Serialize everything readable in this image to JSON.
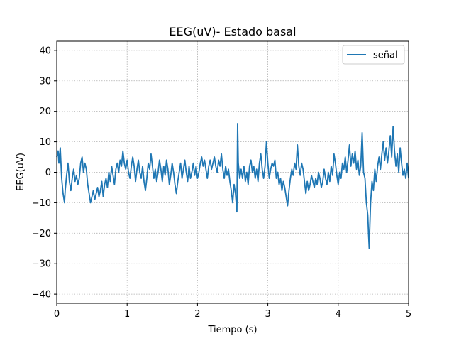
{
  "chart_data": {
    "type": "line",
    "title": "EEG(uV)- Estado basal",
    "xlabel": "Tiempo (s)",
    "ylabel": "EEG(uV)",
    "xlim": [
      0,
      5
    ],
    "ylim": [
      -43,
      43
    ],
    "x_ticks": [
      0,
      1,
      2,
      3,
      4,
      5
    ],
    "y_ticks": [
      -40,
      -30,
      -20,
      -10,
      0,
      10,
      20,
      30,
      40
    ],
    "grid": true,
    "legend_position": "top-right",
    "series": [
      {
        "name": "señal",
        "color": "#1f77b4",
        "points": [
          [
            0.0,
            5
          ],
          [
            0.02,
            7
          ],
          [
            0.03,
            3
          ],
          [
            0.05,
            8
          ],
          [
            0.07,
            -2
          ],
          [
            0.09,
            -7
          ],
          [
            0.11,
            -10
          ],
          [
            0.12,
            -6
          ],
          [
            0.14,
            -1
          ],
          [
            0.16,
            3
          ],
          [
            0.18,
            -3
          ],
          [
            0.2,
            -6
          ],
          [
            0.22,
            -2
          ],
          [
            0.24,
            1
          ],
          [
            0.26,
            -3
          ],
          [
            0.28,
            -1
          ],
          [
            0.3,
            -4
          ],
          [
            0.32,
            -2
          ],
          [
            0.34,
            3
          ],
          [
            0.36,
            5
          ],
          [
            0.38,
            0
          ],
          [
            0.4,
            3
          ],
          [
            0.42,
            1
          ],
          [
            0.44,
            -4
          ],
          [
            0.46,
            -7
          ],
          [
            0.48,
            -10
          ],
          [
            0.5,
            -8
          ],
          [
            0.52,
            -6
          ],
          [
            0.54,
            -9
          ],
          [
            0.56,
            -7
          ],
          [
            0.58,
            -5
          ],
          [
            0.6,
            -8
          ],
          [
            0.62,
            -6
          ],
          [
            0.64,
            -3
          ],
          [
            0.66,
            -8
          ],
          [
            0.68,
            -4
          ],
          [
            0.7,
            -2
          ],
          [
            0.72,
            -5
          ],
          [
            0.74,
            0
          ],
          [
            0.76,
            -3
          ],
          [
            0.78,
            2
          ],
          [
            0.8,
            -1
          ],
          [
            0.82,
            -4
          ],
          [
            0.84,
            1
          ],
          [
            0.86,
            3
          ],
          [
            0.88,
            0
          ],
          [
            0.9,
            4
          ],
          [
            0.92,
            2
          ],
          [
            0.94,
            7
          ],
          [
            0.96,
            3
          ],
          [
            0.98,
            1
          ],
          [
            1.0,
            4
          ],
          [
            1.02,
            0
          ],
          [
            1.04,
            -2
          ],
          [
            1.06,
            2
          ],
          [
            1.08,
            5
          ],
          [
            1.1,
            2
          ],
          [
            1.12,
            -3
          ],
          [
            1.14,
            1
          ],
          [
            1.16,
            4
          ],
          [
            1.18,
            0
          ],
          [
            1.2,
            -2
          ],
          [
            1.22,
            2
          ],
          [
            1.24,
            -3
          ],
          [
            1.26,
            -6
          ],
          [
            1.28,
            -2
          ],
          [
            1.3,
            3
          ],
          [
            1.32,
            1
          ],
          [
            1.34,
            6
          ],
          [
            1.36,
            2
          ],
          [
            1.38,
            -2
          ],
          [
            1.4,
            1
          ],
          [
            1.42,
            -3
          ],
          [
            1.44,
            0
          ],
          [
            1.46,
            4
          ],
          [
            1.48,
            1
          ],
          [
            1.5,
            -3
          ],
          [
            1.52,
            2
          ],
          [
            1.54,
            -1
          ],
          [
            1.56,
            4
          ],
          [
            1.58,
            1
          ],
          [
            1.6,
            -4
          ],
          [
            1.62,
            -1
          ],
          [
            1.64,
            3
          ],
          [
            1.66,
            0
          ],
          [
            1.68,
            -4
          ],
          [
            1.7,
            -7
          ],
          [
            1.72,
            -3
          ],
          [
            1.74,
            0
          ],
          [
            1.76,
            3
          ],
          [
            1.78,
            -2
          ],
          [
            1.8,
            1
          ],
          [
            1.82,
            4
          ],
          [
            1.84,
            0
          ],
          [
            1.86,
            -3
          ],
          [
            1.88,
            2
          ],
          [
            1.9,
            -2
          ],
          [
            1.92,
            0
          ],
          [
            1.94,
            3
          ],
          [
            1.96,
            -1
          ],
          [
            1.98,
            2
          ],
          [
            2.0,
            -2
          ],
          [
            2.02,
            0
          ],
          [
            2.04,
            3
          ],
          [
            2.06,
            5
          ],
          [
            2.08,
            2
          ],
          [
            2.1,
            4
          ],
          [
            2.12,
            1
          ],
          [
            2.14,
            -2
          ],
          [
            2.16,
            2
          ],
          [
            2.18,
            4
          ],
          [
            2.2,
            1
          ],
          [
            2.22,
            3
          ],
          [
            2.24,
            5
          ],
          [
            2.26,
            2
          ],
          [
            2.28,
            0
          ],
          [
            2.3,
            4
          ],
          [
            2.32,
            2
          ],
          [
            2.34,
            6
          ],
          [
            2.36,
            1
          ],
          [
            2.38,
            -2
          ],
          [
            2.4,
            2
          ],
          [
            2.42,
            -1
          ],
          [
            2.44,
            1
          ],
          [
            2.46,
            -3
          ],
          [
            2.48,
            -6
          ],
          [
            2.5,
            -10
          ],
          [
            2.52,
            -4
          ],
          [
            2.54,
            -7
          ],
          [
            2.56,
            -13
          ],
          [
            2.57,
            16
          ],
          [
            2.58,
            3
          ],
          [
            2.6,
            -2
          ],
          [
            2.62,
            1
          ],
          [
            2.64,
            -2
          ],
          [
            2.66,
            2
          ],
          [
            2.68,
            -3
          ],
          [
            2.7,
            0
          ],
          [
            2.72,
            -4
          ],
          [
            2.74,
            2
          ],
          [
            2.76,
            4
          ],
          [
            2.78,
            0
          ],
          [
            2.8,
            2
          ],
          [
            2.82,
            -2
          ],
          [
            2.84,
            1
          ],
          [
            2.86,
            -3
          ],
          [
            2.88,
            3
          ],
          [
            2.9,
            6
          ],
          [
            2.92,
            1
          ],
          [
            2.94,
            -2
          ],
          [
            2.96,
            2
          ],
          [
            2.98,
            10
          ],
          [
            3.0,
            3
          ],
          [
            3.02,
            -2
          ],
          [
            3.04,
            1
          ],
          [
            3.06,
            3
          ],
          [
            3.08,
            2
          ],
          [
            3.1,
            4
          ],
          [
            3.12,
            -2
          ],
          [
            3.14,
            0
          ],
          [
            3.16,
            -4
          ],
          [
            3.18,
            -2
          ],
          [
            3.2,
            -6
          ],
          [
            3.22,
            -3
          ],
          [
            3.24,
            -5
          ],
          [
            3.26,
            -8
          ],
          [
            3.28,
            -11
          ],
          [
            3.3,
            -6
          ],
          [
            3.32,
            -2
          ],
          [
            3.34,
            1
          ],
          [
            3.36,
            -1
          ],
          [
            3.38,
            3
          ],
          [
            3.4,
            1
          ],
          [
            3.42,
            9
          ],
          [
            3.44,
            2
          ],
          [
            3.46,
            -1
          ],
          [
            3.48,
            3
          ],
          [
            3.5,
            1
          ],
          [
            3.52,
            -3
          ],
          [
            3.54,
            -7
          ],
          [
            3.56,
            -3
          ],
          [
            3.58,
            -6
          ],
          [
            3.6,
            -4
          ],
          [
            3.62,
            -1
          ],
          [
            3.64,
            -3
          ],
          [
            3.66,
            -5
          ],
          [
            3.68,
            -2
          ],
          [
            3.7,
            -4
          ],
          [
            3.72,
            0
          ],
          [
            3.74,
            -2
          ],
          [
            3.76,
            -5
          ],
          [
            3.78,
            -3
          ],
          [
            3.8,
            1
          ],
          [
            3.82,
            -2
          ],
          [
            3.84,
            -4
          ],
          [
            3.86,
            0
          ],
          [
            3.88,
            -3
          ],
          [
            3.9,
            2
          ],
          [
            3.92,
            -1
          ],
          [
            3.94,
            6
          ],
          [
            3.96,
            3
          ],
          [
            3.98,
            -1
          ],
          [
            4.0,
            -4
          ],
          [
            4.02,
            0
          ],
          [
            4.04,
            -2
          ],
          [
            4.06,
            3
          ],
          [
            4.08,
            1
          ],
          [
            4.1,
            5
          ],
          [
            4.12,
            0
          ],
          [
            4.14,
            4
          ],
          [
            4.16,
            9
          ],
          [
            4.18,
            2
          ],
          [
            4.2,
            6
          ],
          [
            4.22,
            3
          ],
          [
            4.24,
            7
          ],
          [
            4.26,
            1
          ],
          [
            4.28,
            4
          ],
          [
            4.3,
            -1
          ],
          [
            4.32,
            2
          ],
          [
            4.34,
            13
          ],
          [
            4.36,
            0
          ],
          [
            4.38,
            -2
          ],
          [
            4.4,
            -10
          ],
          [
            4.42,
            -14
          ],
          [
            4.43,
            -20
          ],
          [
            4.44,
            -25
          ],
          [
            4.45,
            -17
          ],
          [
            4.46,
            -10
          ],
          [
            4.48,
            -3
          ],
          [
            4.5,
            -6
          ],
          [
            4.52,
            1
          ],
          [
            4.54,
            -3
          ],
          [
            4.56,
            2
          ],
          [
            4.58,
            5
          ],
          [
            4.6,
            1
          ],
          [
            4.62,
            6
          ],
          [
            4.64,
            10
          ],
          [
            4.66,
            4
          ],
          [
            4.68,
            8
          ],
          [
            4.7,
            3
          ],
          [
            4.72,
            7
          ],
          [
            4.74,
            12
          ],
          [
            4.76,
            5
          ],
          [
            4.78,
            15
          ],
          [
            4.8,
            7
          ],
          [
            4.82,
            2
          ],
          [
            4.84,
            6
          ],
          [
            4.86,
            0
          ],
          [
            4.88,
            8
          ],
          [
            4.9,
            3
          ],
          [
            4.92,
            -1
          ],
          [
            4.94,
            1
          ],
          [
            4.96,
            -2
          ],
          [
            4.98,
            3
          ],
          [
            5.0,
            -2
          ]
        ]
      }
    ]
  }
}
